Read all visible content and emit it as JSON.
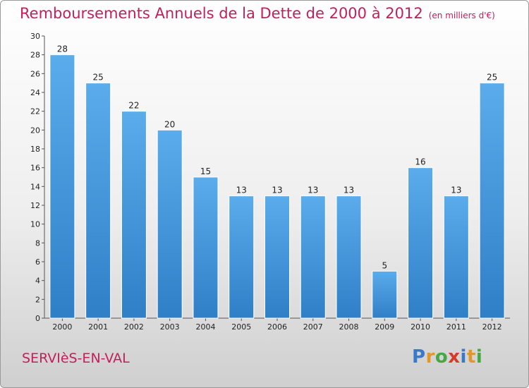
{
  "chart_data": {
    "type": "bar",
    "title": "Remboursements Annuels de la Dette de 2000 à 2012",
    "unit_note": "(en milliers d'€)",
    "categories": [
      "2000",
      "2001",
      "2002",
      "2003",
      "2004",
      "2005",
      "2006",
      "2007",
      "2008",
      "2009",
      "2010",
      "2011",
      "2012"
    ],
    "values": [
      28,
      25,
      22,
      20,
      15,
      13,
      13,
      13,
      13,
      5,
      16,
      13,
      25
    ],
    "ylim": [
      0,
      30
    ],
    "yticks": [
      0,
      2,
      4,
      6,
      8,
      10,
      12,
      14,
      16,
      18,
      20,
      22,
      24,
      26,
      28,
      30
    ],
    "grid": false,
    "bar_color": "#4a9be0"
  },
  "footer": {
    "city": "SERVIèS-EN-VAL",
    "logo_letters": [
      {
        "ch": "P",
        "color": "#3a78c8"
      },
      {
        "ch": "r",
        "color": "#e3962a"
      },
      {
        "ch": "o",
        "color": "#45a845"
      },
      {
        "ch": "x",
        "color": "#d63a2a"
      },
      {
        "ch": "i",
        "color": "#3a78c8"
      },
      {
        "ch": "t",
        "color": "#e3962a"
      },
      {
        "ch": "i",
        "color": "#45a845"
      }
    ]
  }
}
